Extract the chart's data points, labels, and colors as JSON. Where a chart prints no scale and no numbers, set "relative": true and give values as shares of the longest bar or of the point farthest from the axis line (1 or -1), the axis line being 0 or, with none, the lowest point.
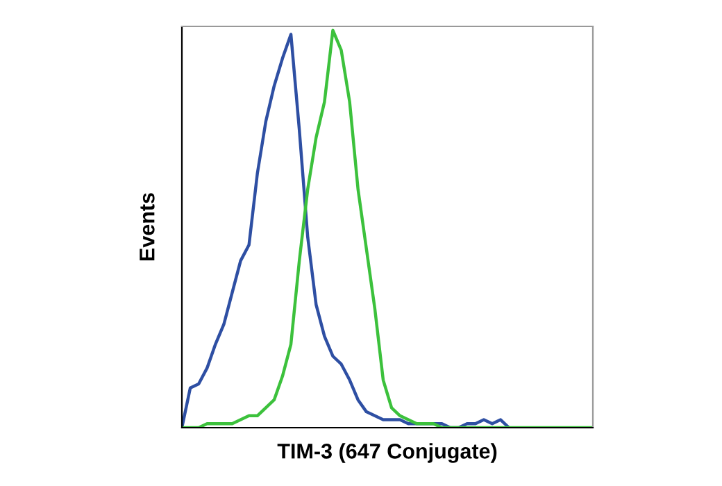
{
  "chart_data": {
    "type": "line",
    "relative": true,
    "xlabel": "TIM-3 (647 Conjugate)",
    "ylabel": "Events",
    "tick_labels": false,
    "grid": false,
    "legend": false,
    "categories": [
      null,
      null,
      null,
      null,
      null,
      null,
      null,
      null,
      null,
      null,
      null,
      null,
      null,
      null,
      null,
      null,
      null,
      null,
      null,
      null,
      null,
      null,
      null,
      null,
      null,
      null,
      null,
      null,
      null,
      null,
      null,
      null,
      null,
      null,
      null,
      null,
      null,
      null,
      null,
      null,
      null,
      null,
      null,
      null,
      null,
      null,
      null,
      null,
      null,
      null
    ],
    "series": [
      {
        "color": "#2e4fa3",
        "values": [
          0,
          0.1,
          0.11,
          0.15,
          0.21,
          0.26,
          0.34,
          0.42,
          0.46,
          0.64,
          0.77,
          0.86,
          0.93,
          0.99,
          0.75,
          0.48,
          0.31,
          0.23,
          0.18,
          0.16,
          0.12,
          0.07,
          0.04,
          0.03,
          0.02,
          0.02,
          0.02,
          0.01,
          0.01,
          0.01,
          0.01,
          0.01,
          0,
          0,
          0.01,
          0.01,
          0.02,
          0.01,
          0.02,
          0,
          null,
          null,
          null,
          null,
          null,
          null,
          null,
          null,
          null,
          null
        ]
      },
      {
        "color": "#3cc13c",
        "values": [
          0,
          0,
          0,
          0.01,
          0.01,
          0.01,
          0.01,
          0.02,
          0.03,
          0.03,
          0.05,
          0.07,
          0.13,
          0.21,
          0.42,
          0.6,
          0.73,
          0.82,
          1.0,
          0.95,
          0.82,
          0.6,
          0.45,
          0.3,
          0.12,
          0.05,
          0.03,
          0.02,
          0.01,
          0.01,
          0.01,
          0,
          0,
          0,
          0,
          0,
          0,
          0,
          0,
          0,
          0,
          0,
          0,
          0,
          0,
          0,
          0,
          0,
          0,
          0
        ]
      }
    ]
  }
}
